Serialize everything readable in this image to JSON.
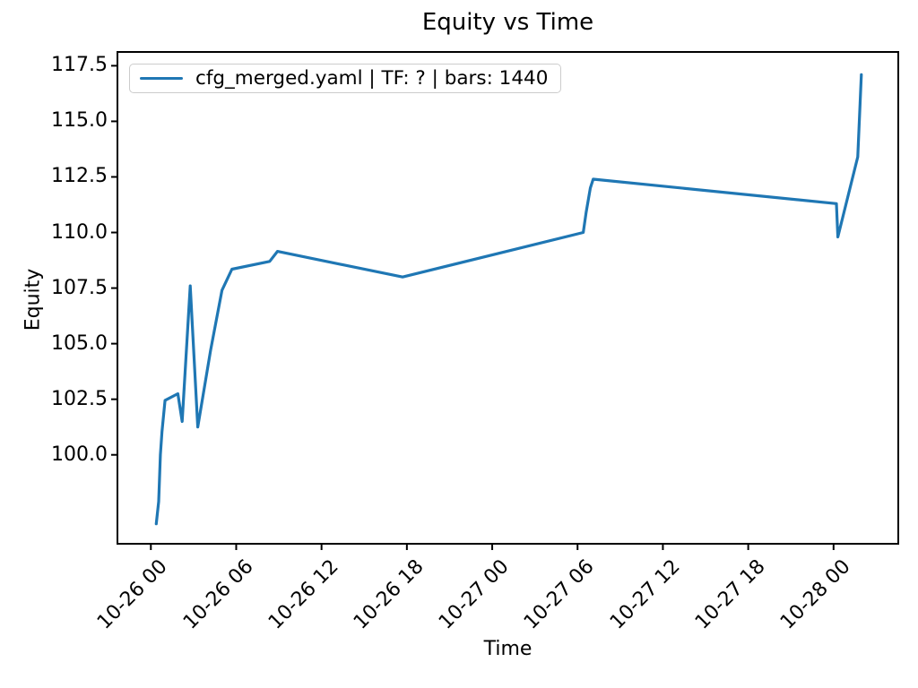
{
  "figure": {
    "title": "Equity vs Time",
    "xlabel": "Time",
    "ylabel": "Equity",
    "legend_label": "cfg_merged.yaml | TF: ? | bars: 1440"
  },
  "colors": {
    "line": "#1f77b4",
    "axes": "#000000",
    "legend_border": "#cccccc",
    "background": "#ffffff"
  },
  "chart_data": {
    "type": "line",
    "title": "Equity vs Time",
    "xlabel": "Time",
    "ylabel": "Equity",
    "legend": [
      "cfg_merged.yaml | TF: ? | bars: 1440"
    ],
    "legend_position": "upper left",
    "grid": false,
    "line_color": "#1f77b4",
    "x_unit": "hours since 10-26 00:00",
    "xlim": [
      -2.35,
      52.55
    ],
    "ylim": [
      96.0,
      118.12
    ],
    "y_ticks": [
      100.0,
      102.5,
      105.0,
      107.5,
      110.0,
      112.5,
      115.0,
      117.5
    ],
    "x_ticks": [
      {
        "t": 0,
        "label": "10-26 00"
      },
      {
        "t": 6,
        "label": "10-26 06"
      },
      {
        "t": 12,
        "label": "10-26 12"
      },
      {
        "t": 18,
        "label": "10-26 18"
      },
      {
        "t": 24,
        "label": "10-27 00"
      },
      {
        "t": 30,
        "label": "10-27 06"
      },
      {
        "t": 36,
        "label": "10-27 12"
      },
      {
        "t": 42,
        "label": "10-27 18"
      },
      {
        "t": 48,
        "label": "10-28 00"
      }
    ],
    "points": [
      [
        0.38,
        96.9
      ],
      [
        0.55,
        97.9
      ],
      [
        0.67,
        100.0
      ],
      [
        0.78,
        101.05
      ],
      [
        1.0,
        102.45
      ],
      [
        1.9,
        102.75
      ],
      [
        2.2,
        101.5
      ],
      [
        2.77,
        107.6
      ],
      [
        3.3,
        101.25
      ],
      [
        4.2,
        104.7
      ],
      [
        5.0,
        107.4
      ],
      [
        5.7,
        108.35
      ],
      [
        8.35,
        108.7
      ],
      [
        8.9,
        109.15
      ],
      [
        17.7,
        108.0
      ],
      [
        30.4,
        110.0
      ],
      [
        30.6,
        110.9
      ],
      [
        30.9,
        112.0
      ],
      [
        31.1,
        112.4
      ],
      [
        48.2,
        111.3
      ],
      [
        48.3,
        109.8
      ],
      [
        49.7,
        113.4
      ],
      [
        49.95,
        117.1
      ]
    ]
  }
}
